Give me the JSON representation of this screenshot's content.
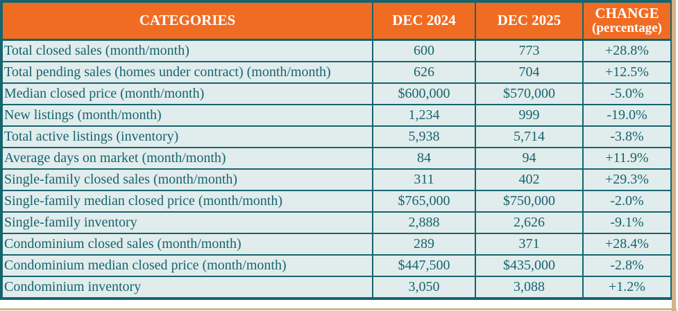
{
  "table": {
    "header": {
      "categories": "CATEGORIES",
      "dec_2024": "DEC 2024",
      "dec_2025": "DEC 2025",
      "change_line1": "CHANGE",
      "change_line2": "(percentage)"
    },
    "rows": [
      {
        "label": "Total closed sales (month/month)",
        "dec_2024": "600",
        "dec_2025": "773",
        "change": "+28.8%"
      },
      {
        "label": "Total pending sales (homes under contract) (month/month)",
        "dec_2024": "626",
        "dec_2025": "704",
        "change": "+12.5%"
      },
      {
        "label": "Median closed price (month/month)",
        "dec_2024": "$600,000",
        "dec_2025": "$570,000",
        "change": "-5.0%"
      },
      {
        "label": "New listings (month/month)",
        "dec_2024": "1,234",
        "dec_2025": "999",
        "change": "-19.0%"
      },
      {
        "label": "Total active listings (inventory)",
        "dec_2024": "5,938",
        "dec_2025": "5,714",
        "change": "-3.8%"
      },
      {
        "label": "Average days on market (month/month)",
        "dec_2024": "84",
        "dec_2025": "94",
        "change": "+11.9%"
      },
      {
        "label": "Single-family closed sales (month/month)",
        "dec_2024": "311",
        "dec_2025": "402",
        "change": "+29.3%"
      },
      {
        "label": "Single-family median closed price (month/month)",
        "dec_2024": "$765,000",
        "dec_2025": "$750,000",
        "change": "-2.0%"
      },
      {
        "label": "Single-family inventory",
        "dec_2024": "2,888",
        "dec_2025": "2,626",
        "change": "-9.1%"
      },
      {
        "label": "Condominium closed sales (month/month)",
        "dec_2024": "289",
        "dec_2025": "371",
        "change": "+28.4%"
      },
      {
        "label": "Condominium median closed price (month/month)",
        "dec_2024": "$447,500",
        "dec_2025": "$435,000",
        "change": "-2.8%"
      },
      {
        "label": "Condominium inventory",
        "dec_2024": "3,050",
        "dec_2025": "3,088",
        "change": "+1.2%"
      }
    ]
  },
  "colors": {
    "header_bg": "#f16c23",
    "header_text": "#ffffff",
    "border_teal": "#16646e",
    "cell_bg": "#e1ecec",
    "cell_text": "#16646e",
    "page_edge_tan": "#d5b28b"
  }
}
